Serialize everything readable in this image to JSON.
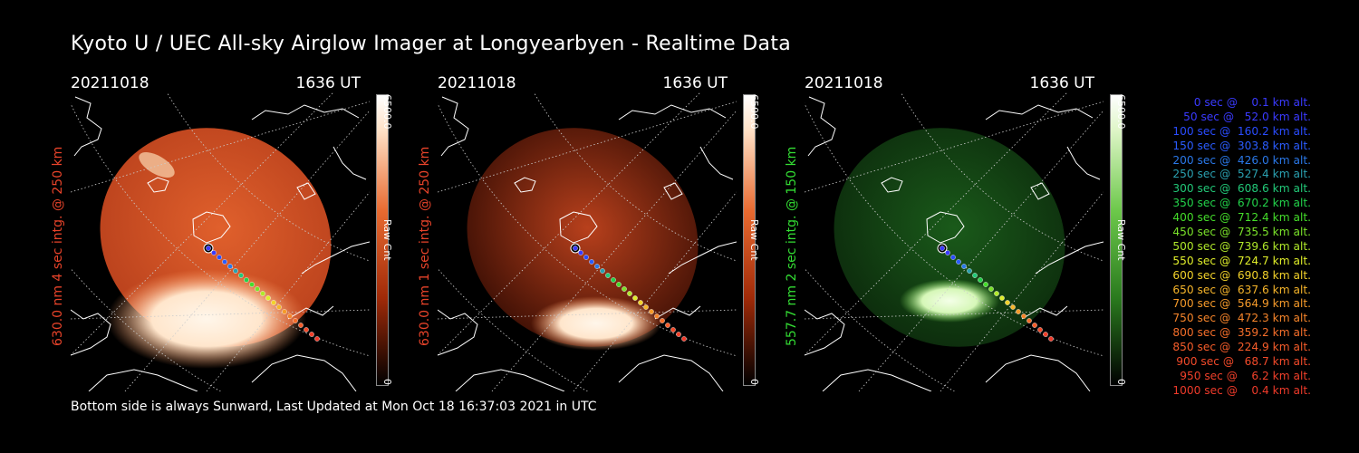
{
  "title": "Kyoto U / UEC All-sky Airglow Imager at Longyearbyen - Realtime Data",
  "footer": "Bottom side is always Sunward, Last Updated at Mon Oct 18 16:37:03 2021 in UTC",
  "panels": [
    {
      "date": "20211018",
      "time": "1636 UT",
      "ylabel": "630.0 nm 4 sec intg. @ 250 km",
      "label_color": "#e8432a",
      "colormap": "red",
      "intensity": 0.85,
      "colorbar_max": "6500.0",
      "colorbar_min": "0",
      "colorbar_unit": "Raw Cnt"
    },
    {
      "date": "20211018",
      "time": "1636 UT",
      "ylabel": "630.0 nm 1 sec intg. @ 250 km",
      "label_color": "#e8432a",
      "colormap": "red",
      "intensity": 0.25,
      "colorbar_max": "6500.0",
      "colorbar_min": "0",
      "colorbar_unit": "Raw Cnt"
    },
    {
      "date": "20211018",
      "time": "1636 UT",
      "ylabel": "557.7 nm 2 sec intg. @ 150 km",
      "label_color": "#33dd33",
      "colormap": "green",
      "intensity": 0.3,
      "colorbar_max": "6500.0",
      "colorbar_min": "0",
      "colorbar_unit": "Raw Cnt"
    }
  ],
  "legend": [
    {
      "text": "0 sec @    0.1 km alt.",
      "color": "#3a3aff"
    },
    {
      "text": "50 sec @   52.0 km alt.",
      "color": "#3a3aff"
    },
    {
      "text": "100 sec @  160.2 km alt.",
      "color": "#2a4cff"
    },
    {
      "text": "150 sec @  303.8 km alt.",
      "color": "#2a5cff"
    },
    {
      "text": "200 sec @  426.0 km alt.",
      "color": "#2a78e8"
    },
    {
      "text": "250 sec @  527.4 km alt.",
      "color": "#2aa0b0"
    },
    {
      "text": "300 sec @  608.6 km alt.",
      "color": "#22c878"
    },
    {
      "text": "350 sec @  670.2 km alt.",
      "color": "#22d24a"
    },
    {
      "text": "400 sec @  712.4 km alt.",
      "color": "#44dc2a"
    },
    {
      "text": "450 sec @  735.5 km alt.",
      "color": "#7ae22a"
    },
    {
      "text": "500 sec @  739.6 km alt.",
      "color": "#b0e82a"
    },
    {
      "text": "550 sec @  724.7 km alt.",
      "color": "#e0ee2a"
    },
    {
      "text": "600 sec @  690.8 km alt.",
      "color": "#f2d22a"
    },
    {
      "text": "650 sec @  637.6 km alt.",
      "color": "#f5b42a"
    },
    {
      "text": "700 sec @  564.9 km alt.",
      "color": "#f59a2a"
    },
    {
      "text": "750 sec @  472.3 km alt.",
      "color": "#f5842a"
    },
    {
      "text": "800 sec @  359.2 km alt.",
      "color": "#f56e2a"
    },
    {
      "text": "850 sec @  224.9 km alt.",
      "color": "#f55c2a"
    },
    {
      "text": "900 sec @   68.7 km alt.",
      "color": "#f24a2a"
    },
    {
      "text": "950 sec @    6.2 km alt.",
      "color": "#f0402a"
    },
    {
      "text": "1000 sec @    0.4 km alt.",
      "color": "#ee3a2a"
    }
  ]
}
